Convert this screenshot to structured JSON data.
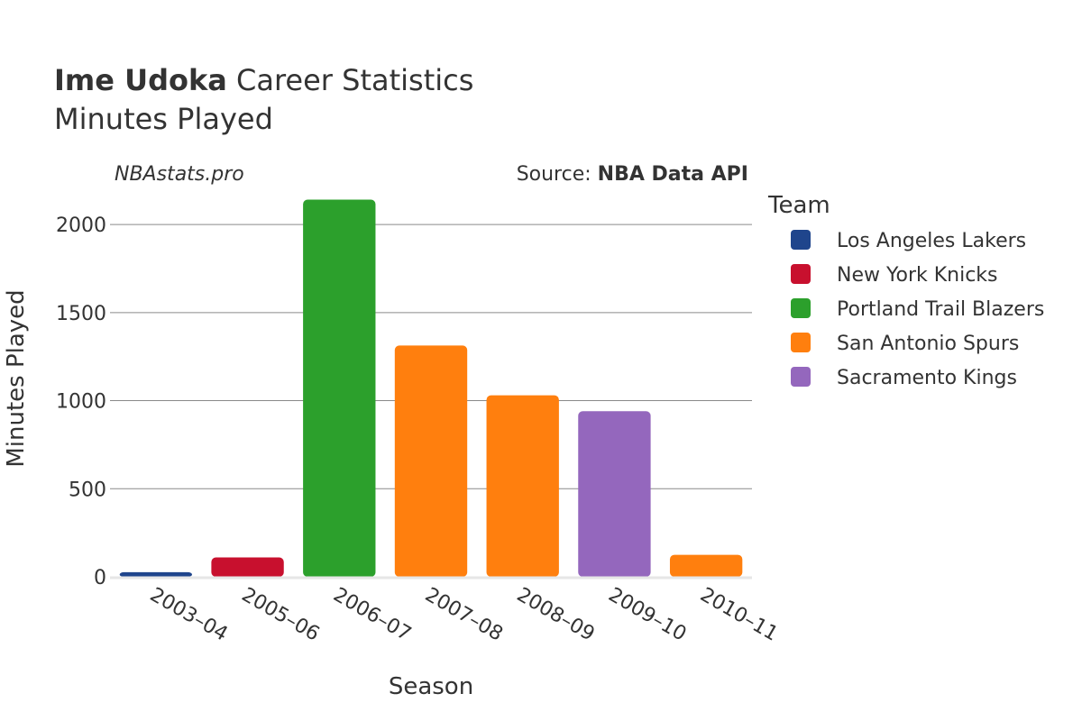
{
  "header": {
    "player_name": "Ime Udoka",
    "title_rest": " Career Statistics",
    "subtitle": "Minutes Played",
    "brand": "NBAstats.pro",
    "source_prefix": "Source: ",
    "source_name": "NBA Data API"
  },
  "legend": {
    "title": "Team"
  },
  "chart_data": {
    "type": "bar",
    "title": "Ime Udoka Career Statistics",
    "subtitle": "Minutes Played",
    "xlabel": "Season",
    "ylabel": "Minutes Played",
    "ylim": [
      0,
      2200
    ],
    "yticks": [
      0,
      500,
      1000,
      1500,
      2000
    ],
    "grid": true,
    "legend_position": "right",
    "categories": [
      "2003–04",
      "2005–06",
      "2006–07",
      "2007–08",
      "2008–09",
      "2009–10",
      "2010–11"
    ],
    "bars": [
      {
        "season": "2003–04",
        "team": "Los Angeles Lakers",
        "value": 26
      },
      {
        "season": "2005–06",
        "team": "New York Knicks",
        "value": 110
      },
      {
        "season": "2006–07",
        "team": "Portland Trail Blazers",
        "value": 2141
      },
      {
        "season": "2007–08",
        "team": "San Antonio Spurs",
        "value": 1313
      },
      {
        "season": "2008–09",
        "team": "San Antonio Spurs",
        "value": 1030
      },
      {
        "season": "2009–10",
        "team": "Sacramento Kings",
        "value": 940
      },
      {
        "season": "2010–11",
        "team": "San Antonio Spurs",
        "value": 125
      }
    ],
    "teams": [
      {
        "name": "Los Angeles Lakers",
        "color": "#1f458c"
      },
      {
        "name": "New York Knicks",
        "color": "#c8102e"
      },
      {
        "name": "Portland Trail Blazers",
        "color": "#2ca02c"
      },
      {
        "name": "San Antonio Spurs",
        "color": "#ff7f0e"
      },
      {
        "name": "Sacramento Kings",
        "color": "#9467bd"
      }
    ]
  }
}
